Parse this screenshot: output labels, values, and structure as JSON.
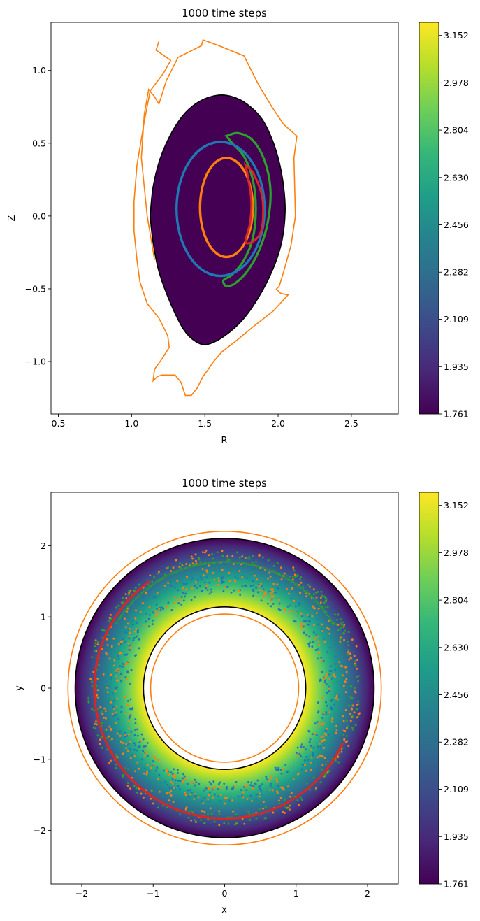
{
  "chart_data": [
    {
      "type": "contour",
      "title": "1000 time steps",
      "xlabel": "R",
      "ylabel": "Z",
      "xlim": [
        0.45,
        2.82
      ],
      "ylim": [
        -1.36,
        1.33
      ],
      "xticks": [
        0.5,
        1.0,
        1.5,
        2.0,
        2.5
      ],
      "xtick_labels": [
        "0.5",
        "1.0",
        "1.5",
        "2.0",
        "2.5"
      ],
      "yticks": [
        -1.0,
        -0.5,
        0.0,
        0.5,
        1.0
      ],
      "ytick_labels": [
        "−1.0",
        "−0.5",
        "0.0",
        "0.5",
        "1.0"
      ],
      "colormap": "viridis",
      "colorbar": {
        "min": 1.761,
        "max": 3.2,
        "tick_values": [
          1.761,
          1.935,
          2.109,
          2.282,
          2.456,
          2.63,
          2.804,
          2.978,
          3.152
        ],
        "tick_labels": [
          "1.761",
          "1.935",
          "2.109",
          "2.282",
          "2.456",
          "2.630",
          "2.804",
          "2.978",
          "3.152"
        ]
      },
      "fill_gradient": {
        "x_min": 1.14,
        "x_max": 2.06,
        "value_at_x_min": 3.2,
        "value_at_x_max": 1.761
      },
      "boundary": {
        "color": "#000000",
        "points": [
          [
            1.14,
            0.0
          ],
          [
            1.16,
            0.2
          ],
          [
            1.21,
            0.4
          ],
          [
            1.29,
            0.58
          ],
          [
            1.38,
            0.71
          ],
          [
            1.48,
            0.79
          ],
          [
            1.6,
            0.83
          ],
          [
            1.7,
            0.82
          ],
          [
            1.8,
            0.77
          ],
          [
            1.9,
            0.67
          ],
          [
            1.97,
            0.53
          ],
          [
            2.02,
            0.37
          ],
          [
            2.05,
            0.2
          ],
          [
            2.06,
            0.03
          ],
          [
            2.04,
            -0.16
          ],
          [
            1.99,
            -0.33
          ],
          [
            1.9,
            -0.52
          ],
          [
            1.78,
            -0.7
          ],
          [
            1.65,
            -0.82
          ],
          [
            1.53,
            -0.88
          ],
          [
            1.45,
            -0.86
          ],
          [
            1.37,
            -0.78
          ],
          [
            1.28,
            -0.6
          ],
          [
            1.2,
            -0.38
          ],
          [
            1.16,
            -0.18
          ],
          [
            1.14,
            0.0
          ]
        ]
      },
      "wall": {
        "color": "#ff7f0e",
        "points": [
          [
            1.17,
            -0.3
          ],
          [
            1.12,
            0.0
          ],
          [
            1.08,
            0.4
          ],
          [
            1.1,
            0.7
          ],
          [
            1.13,
            0.87
          ],
          [
            1.17,
            0.82
          ],
          [
            1.2,
            0.77
          ],
          [
            1.25,
            0.93
          ],
          [
            1.33,
            1.09
          ],
          [
            1.49,
            1.17
          ],
          [
            1.5,
            1.21
          ],
          [
            1.61,
            1.17
          ],
          [
            1.78,
            1.1
          ],
          [
            1.88,
            0.9
          ],
          [
            1.97,
            0.75
          ],
          [
            2.05,
            0.63
          ],
          [
            2.14,
            0.55
          ],
          [
            2.12,
            0.4
          ],
          [
            2.13,
            0.0
          ],
          [
            2.1,
            -0.2
          ],
          [
            2.05,
            -0.38
          ],
          [
            2.02,
            -0.48
          ],
          [
            2.0,
            -0.5
          ],
          [
            2.03,
            -0.53
          ],
          [
            2.08,
            -0.54
          ],
          [
            1.98,
            -0.65
          ],
          [
            1.84,
            -0.76
          ],
          [
            1.72,
            -0.86
          ],
          [
            1.63,
            -0.93
          ],
          [
            1.57,
            -1.0
          ],
          [
            1.53,
            -1.06
          ],
          [
            1.5,
            -1.1
          ],
          [
            1.46,
            -1.18
          ],
          [
            1.42,
            -1.23
          ],
          [
            1.38,
            -1.23
          ],
          [
            1.35,
            -1.14
          ],
          [
            1.31,
            -1.09
          ],
          [
            1.22,
            -1.09
          ],
          [
            1.19,
            -1.1
          ],
          [
            1.16,
            -1.13
          ],
          [
            1.17,
            -1.05
          ],
          [
            1.22,
            -0.98
          ],
          [
            1.27,
            -0.9
          ],
          [
            1.26,
            -0.82
          ],
          [
            1.2,
            -0.7
          ],
          [
            1.12,
            -0.6
          ],
          [
            1.07,
            -0.45
          ],
          [
            1.05,
            -0.3
          ],
          [
            1.03,
            -0.1
          ],
          [
            1.03,
            0.1
          ],
          [
            1.05,
            0.35
          ],
          [
            1.1,
            0.65
          ],
          [
            1.14,
            0.86
          ],
          [
            1.23,
            0.98
          ],
          [
            1.28,
            1.07
          ],
          [
            1.18,
            1.14
          ],
          [
            1.2,
            1.2
          ]
        ]
      },
      "orbits": [
        {
          "color": "#1f77b4",
          "shape": "ellipse",
          "center": [
            1.62,
            0.05
          ],
          "radii": [
            0.3,
            0.46
          ]
        },
        {
          "color": "#ff7f0e",
          "shape": "ellipse",
          "center": [
            1.66,
            0.06
          ],
          "radii": [
            0.18,
            0.34
          ]
        },
        {
          "color": "#2ca02c",
          "shape": "banana",
          "points": [
            [
              1.66,
              0.55
            ],
            [
              1.74,
              0.57
            ],
            [
              1.84,
              0.52
            ],
            [
              1.92,
              0.38
            ],
            [
              1.96,
              0.18
            ],
            [
              1.94,
              -0.05
            ],
            [
              1.88,
              -0.24
            ],
            [
              1.8,
              -0.38
            ],
            [
              1.72,
              -0.46
            ],
            [
              1.66,
              -0.48
            ],
            [
              1.64,
              -0.44
            ],
            [
              1.7,
              -0.4
            ],
            [
              1.78,
              -0.3
            ],
            [
              1.84,
              -0.15
            ],
            [
              1.86,
              0.05
            ],
            [
              1.84,
              0.25
            ],
            [
              1.78,
              0.41
            ],
            [
              1.7,
              0.5
            ],
            [
              1.66,
              0.55
            ]
          ]
        },
        {
          "color": "#d62728",
          "shape": "banana",
          "points": [
            [
              1.79,
              0.35
            ],
            [
              1.84,
              0.3
            ],
            [
              1.9,
              0.15
            ],
            [
              1.91,
              0.0
            ],
            [
              1.89,
              -0.12
            ],
            [
              1.83,
              -0.18
            ],
            [
              1.79,
              -0.17
            ],
            [
              1.82,
              -0.05
            ],
            [
              1.83,
              0.1
            ],
            [
              1.81,
              0.25
            ],
            [
              1.79,
              0.35
            ]
          ]
        }
      ]
    },
    {
      "type": "contour",
      "title": "1000 time steps",
      "xlabel": "x",
      "ylabel": "y",
      "xlim": [
        -2.43,
        2.43
      ],
      "ylim": [
        -2.75,
        2.75
      ],
      "xticks": [
        -2,
        -1,
        0,
        1,
        2
      ],
      "xtick_labels": [
        "−2",
        "−1",
        "0",
        "1",
        "2"
      ],
      "yticks": [
        -2,
        -1,
        0,
        1,
        2
      ],
      "ytick_labels": [
        "−2",
        "−1",
        "0",
        "1",
        "2"
      ],
      "colormap": "viridis",
      "colorbar": {
        "min": 1.761,
        "max": 3.2,
        "tick_values": [
          1.761,
          1.935,
          2.109,
          2.282,
          2.456,
          2.63,
          2.804,
          2.978,
          3.152
        ],
        "tick_labels": [
          "1.761",
          "1.935",
          "2.109",
          "2.282",
          "2.456",
          "2.630",
          "2.804",
          "2.978",
          "3.152"
        ]
      },
      "annulus": {
        "inner_radius": 1.14,
        "outer_radius": 2.1,
        "value_at_inner": 3.2,
        "value_at_outer": 1.761,
        "boundary_color": "#000000"
      },
      "wall_circles": {
        "color": "#ff7f0e",
        "radii": [
          1.04,
          2.2
        ]
      },
      "scatter_bands": [
        {
          "color": "#1f77b4",
          "radius_min": 1.32,
          "radius_max": 1.62,
          "count": 420
        },
        {
          "color": "#ff7f0e",
          "radius_min": 1.38,
          "radius_max": 1.95,
          "count": 520
        },
        {
          "color": "#2ca02c",
          "radius_min": 1.76,
          "radius_max": 1.92,
          "count": 260
        }
      ],
      "arcs": [
        {
          "color": "#2ca02c",
          "radius": 1.77,
          "angle_start_deg": 30,
          "angle_end_deg": 150
        },
        {
          "color": "#d62728",
          "radius": 1.83,
          "angle_start_deg": 125,
          "angle_end_deg": 335
        }
      ]
    }
  ]
}
